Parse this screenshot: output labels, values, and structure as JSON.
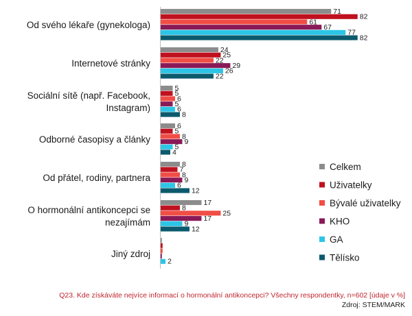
{
  "chart_data": {
    "type": "bar",
    "orientation": "horizontal",
    "categories": [
      [
        "Od svého lékaře (gynekologa)"
      ],
      [
        "Internetové stránky"
      ],
      [
        "Sociální sítě (např. Facebook,",
        "Instagram)"
      ],
      [
        "Odborné časopisy a články"
      ],
      [
        "Od přátel, rodiny, partnera"
      ],
      [
        "O hormonální antikoncepci se",
        "nezajímám"
      ],
      [
        "Jiný zdroj"
      ]
    ],
    "series": [
      {
        "name": "Celkem",
        "color": "#8c8c8c",
        "values": [
          71,
          24,
          5,
          6,
          8,
          17,
          0.5
        ],
        "labels": [
          "71",
          "24",
          "5",
          "6",
          "8",
          "17",
          ""
        ]
      },
      {
        "name": "Uživatelky",
        "color": "#c0111f",
        "values": [
          82,
          25,
          5,
          5,
          7,
          8,
          0.8
        ],
        "labels": [
          "82",
          "25",
          "5",
          "5",
          "7",
          "8",
          ""
        ]
      },
      {
        "name": "Bývalé uživatelky",
        "color": "#f04e45",
        "values": [
          61,
          22,
          6,
          8,
          8,
          25,
          0.8
        ],
        "labels": [
          "61",
          "22",
          "6",
          "8",
          "8",
          "25",
          ""
        ]
      },
      {
        "name": "KHO",
        "color": "#8a1a57",
        "values": [
          67,
          29,
          5,
          9,
          9,
          17,
          0.5
        ],
        "labels": [
          "67",
          "29",
          "5",
          "9",
          "9",
          "17",
          ""
        ]
      },
      {
        "name": "GA",
        "color": "#2cc5e6",
        "values": [
          77,
          26,
          6,
          5,
          6,
          9,
          2
        ],
        "labels": [
          "77",
          "26",
          "6",
          "5",
          "6",
          "9",
          "2"
        ]
      },
      {
        "name": "Tělísko",
        "color": "#0b5a6e",
        "values": [
          82,
          22,
          8,
          4,
          12,
          12,
          0
        ],
        "labels": [
          "82",
          "22",
          "8",
          "4",
          "12",
          "12",
          ""
        ]
      }
    ],
    "xlim": [
      0,
      90
    ],
    "legend_position": "right",
    "grid": false
  },
  "footnote": {
    "question": "Q23. Kde získáváte nejvíce informací o hormonální antikoncepci? Všechny respondentky, n=602 [údaje v %]",
    "source": "Zdroj: STEM/MARK"
  }
}
